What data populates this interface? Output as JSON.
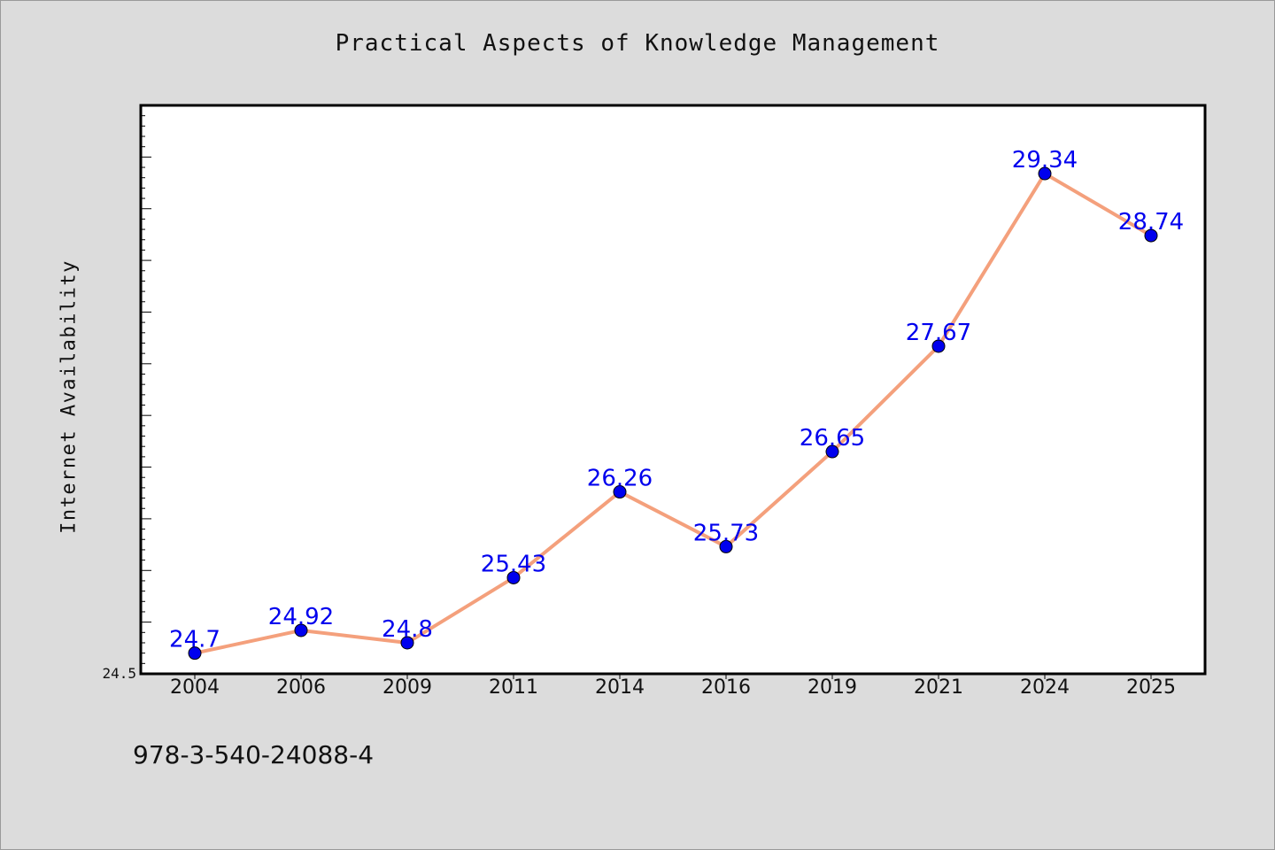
{
  "chart_data": {
    "type": "line",
    "title": "Practical Aspects of Knowledge Management",
    "xlabel": "",
    "ylabel": "Internet Availability",
    "categories": [
      "2004",
      "2006",
      "2009",
      "2011",
      "2014",
      "2016",
      "2019",
      "2021",
      "2024",
      "2025"
    ],
    "series": [
      {
        "values": [
          24.7,
          24.92,
          24.8,
          25.43,
          26.26,
          25.73,
          26.65,
          27.67,
          29.34,
          28.74
        ],
        "line_color": "#f4a07c",
        "marker_color": "#0000ee"
      }
    ],
    "ylim": [
      24.5,
      30.0
    ],
    "y_tick_label": "24.5",
    "data_labels": [
      "24.7",
      "24.92",
      "24.8",
      "25.43",
      "26.26",
      "25.73",
      "26.65",
      "27.67",
      "29.34",
      "28.74"
    ],
    "grid": false,
    "legend": "none"
  },
  "footer": {
    "isbn": "978-3-540-24088-4"
  },
  "colors": {
    "background": "#dcdcdc",
    "plot_background": "#ffffff",
    "line": "#f4a07c",
    "marker": "#0000ee",
    "label": "#0000ee"
  }
}
